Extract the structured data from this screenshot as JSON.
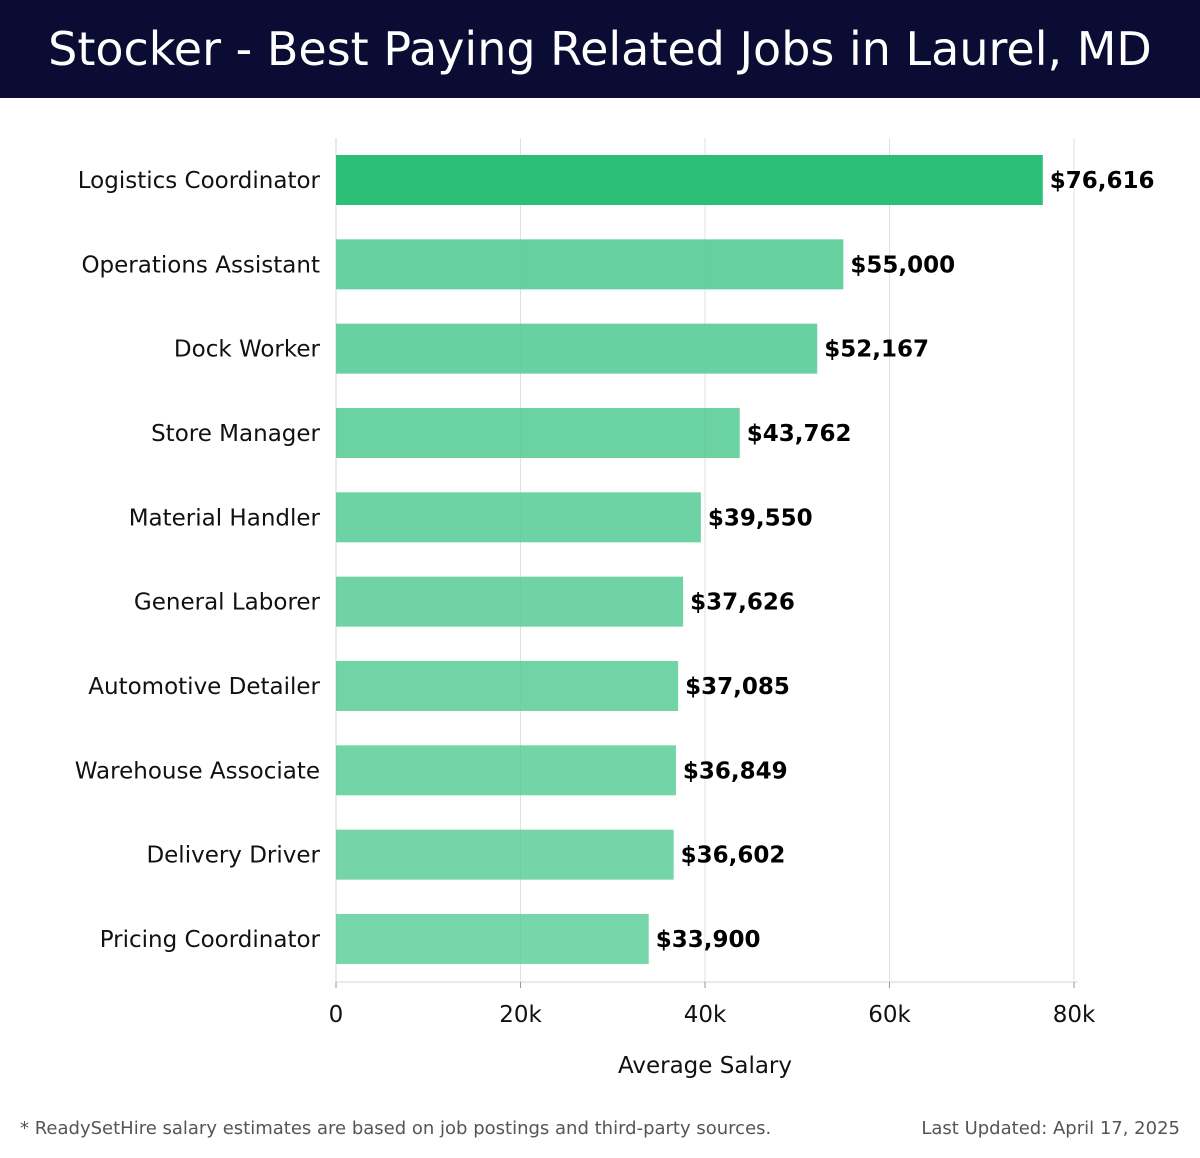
{
  "header": {
    "title": "Stocker - Best Paying Related Jobs in Laurel, MD"
  },
  "chart_data": {
    "type": "bar",
    "orientation": "horizontal",
    "categories": [
      "Logistics Coordinator",
      "Operations Assistant",
      "Dock Worker",
      "Store Manager",
      "Material Handler",
      "General Laborer",
      "Automotive Detailer",
      "Warehouse Associate",
      "Delivery Driver",
      "Pricing Coordinator"
    ],
    "values": [
      76616,
      55000,
      52167,
      43762,
      39550,
      37626,
      37085,
      36849,
      36602,
      33900
    ],
    "data_labels": [
      "$76,616",
      "$55,000",
      "$52,167",
      "$43,762",
      "$39,550",
      "$37,626",
      "$37,085",
      "$36,849",
      "$36,602",
      "$33,900"
    ],
    "xlabel": "Average Salary",
    "xlim": [
      0,
      80000
    ],
    "xticks": [
      0,
      20000,
      40000,
      60000,
      80000
    ],
    "xtick_labels": [
      "0",
      "20k",
      "40k",
      "60k",
      "80k"
    ],
    "grid": "vertical",
    "colors": {
      "top_bar": "#2bbf77",
      "bar": "#57cc96"
    }
  },
  "footer": {
    "note": "* ReadySetHire salary estimates are based on job postings and third-party sources.",
    "updated": "Last Updated: April 17, 2025"
  }
}
